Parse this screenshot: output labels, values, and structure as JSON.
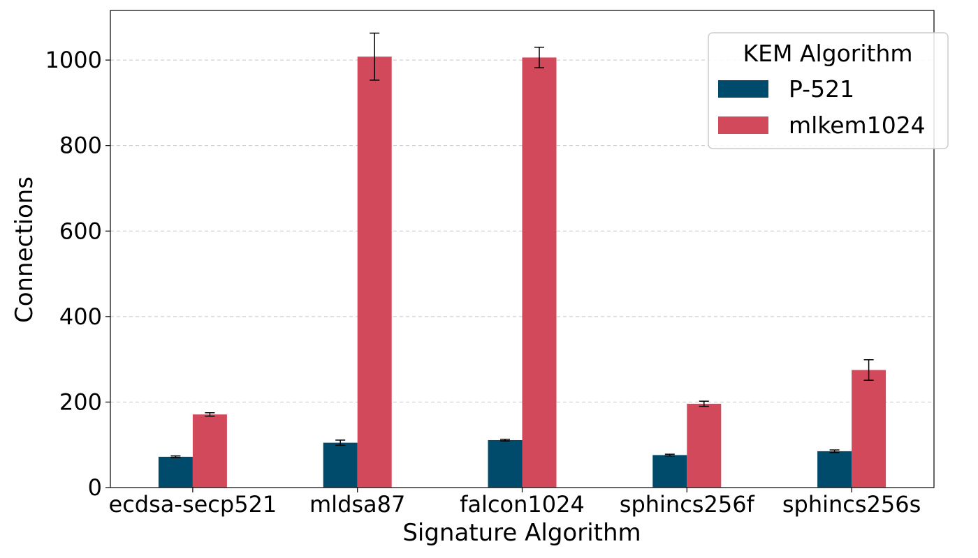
{
  "chart_data": {
    "type": "bar",
    "title": "",
    "xlabel": "Signature Algorithm",
    "ylabel": "Connections",
    "categories": [
      "ecdsa-secp521",
      "mldsa87",
      "falcon1024",
      "sphincs256f",
      "sphincs256s"
    ],
    "series": [
      {
        "name": "P-521",
        "color": "#004b6b",
        "values": [
          72,
          105,
          111,
          76,
          85
        ],
        "errors": [
          2,
          6,
          2,
          2,
          3
        ]
      },
      {
        "name": "mlkem1024",
        "color": "#d1495b",
        "values": [
          171,
          1008,
          1006,
          196,
          275
        ],
        "errors": [
          4,
          55,
          24,
          6,
          24
        ]
      }
    ],
    "ylim": [
      0,
      1116
    ],
    "yticks": [
      0,
      200,
      400,
      600,
      800,
      1000
    ],
    "grid": "horizontal-dashed",
    "legend": {
      "title": "KEM Algorithm",
      "placement": "top-right"
    }
  }
}
